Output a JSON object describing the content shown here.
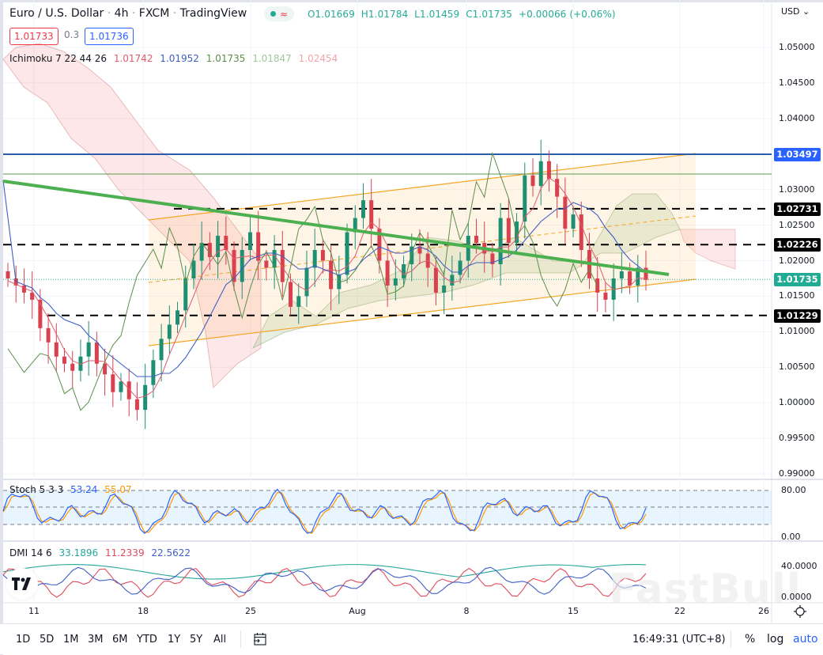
{
  "header": {
    "symbol": "Euro / U.S. Dollar",
    "interval": "4h",
    "exchange": "FXCM",
    "source": "TradingView",
    "separator": "·",
    "status_icons": [
      "market-open-dot-icon",
      "data-delay-wave-icon"
    ],
    "ohlc": {
      "open": "O1.01669",
      "high": "H1.01784",
      "low": "L1.01459",
      "close": "C1.01735",
      "change": "+0.00066 (+0.06%)"
    },
    "bid": "1.01733",
    "spread": "0.3",
    "ask": "1.01736",
    "currency": "USD"
  },
  "indicators": {
    "ichimoku": {
      "label": "Ichimoku 7 22 44 26",
      "values": [
        {
          "v": "1.01742",
          "color": "#e05a6d"
        },
        {
          "v": "1.01952",
          "color": "#3d5fc4"
        },
        {
          "v": "1.01735",
          "color": "#5b8f4a"
        },
        {
          "v": "1.01847",
          "color": "#9fc79a"
        },
        {
          "v": "1.02454",
          "color": "#f2a3a9"
        }
      ]
    },
    "stoch": {
      "label": "Stoch 5 3 3",
      "k": "53.24",
      "d": "55.07",
      "k_color": "#2962ff",
      "d_color": "#ff9800"
    },
    "dmi": {
      "label": "DMI 14 6",
      "adx": "33.1896",
      "plus_di": "11.2339",
      "minus_di": "22.5622",
      "adx_color": "#26a69a",
      "plus_color": "#e04a5a",
      "minus_color": "#3f5fc8"
    }
  },
  "price_axis": {
    "ticks": [
      "1.05000",
      "1.04500",
      "1.04000",
      "1.03000",
      "1.02500",
      "1.02000",
      "1.01500",
      "1.01000",
      "1.00500",
      "1.00000",
      "0.99500",
      "0.99000"
    ],
    "badges": [
      {
        "label": "1.03497",
        "color": "#2962ff",
        "name": "resistance-line-price"
      },
      {
        "label": "1.02731",
        "color": "#000000",
        "name": "horizontal-level-1"
      },
      {
        "label": "1.02226",
        "color": "#000000",
        "name": "horizontal-level-2"
      },
      {
        "label": "1.01735",
        "color": "#22ab94",
        "name": "last-price"
      },
      {
        "label": "1.01229",
        "color": "#000000",
        "name": "horizontal-level-3"
      }
    ]
  },
  "stoch_axis": {
    "ticks": [
      "80.00",
      "0.00"
    ]
  },
  "dmi_axis": {
    "ticks": [
      "40.0000",
      "0.0000"
    ]
  },
  "time_axis": {
    "labels": [
      "11",
      "18",
      "25",
      "Aug",
      "8",
      "15",
      "22",
      "26"
    ]
  },
  "bottom_bar": {
    "ranges": [
      "1D",
      "5D",
      "1M",
      "3M",
      "6M",
      "YTD",
      "1Y",
      "5Y",
      "All"
    ],
    "clock": "16:49:31 (UTC+8)",
    "percent": "%",
    "log": "log",
    "auto": "auto"
  },
  "watermark": "FastBull",
  "chart_data": [
    {
      "type": "candlestick",
      "title": "Euro / U.S. Dollar · 4h · FXCM",
      "xlabel": "",
      "ylabel": "USD",
      "ylim": [
        0.99,
        1.053
      ],
      "x_tick_labels": [
        "11",
        "18",
        "25",
        "Aug",
        "8",
        "15",
        "22",
        "26"
      ],
      "last": {
        "open": 1.01669,
        "high": 1.01784,
        "low": 1.01459,
        "close": 1.01735,
        "change": 0.00066,
        "change_pct": 0.06
      },
      "horizontal_levels": [
        1.03497,
        1.02731,
        1.02226,
        1.01229
      ],
      "approx_close_path": [
        1.0175,
        1.0165,
        1.0155,
        1.0145,
        1.0105,
        1.0085,
        1.0065,
        1.0055,
        1.0045,
        1.0065,
        1.0085,
        1.0055,
        1.004,
        1.0015,
        1.003,
        1.0005,
        0.999,
        1.0025,
        1.006,
        1.009,
        1.011,
        1.013,
        1.0175,
        1.02,
        1.0225,
        1.0205,
        1.0235,
        1.0215,
        1.017,
        1.0215,
        1.024,
        1.02,
        1.019,
        1.0215,
        1.017,
        1.0135,
        1.015,
        1.019,
        1.0215,
        1.02,
        1.016,
        1.018,
        1.024,
        1.026,
        1.0285,
        1.0245,
        1.02,
        1.0165,
        1.0175,
        1.0195,
        1.022,
        1.021,
        1.019,
        1.0155,
        1.0165,
        1.018,
        1.02,
        1.0235,
        1.0225,
        1.021,
        1.0195,
        1.026,
        1.0225,
        1.0255,
        1.032,
        1.0305,
        1.034,
        1.0315,
        1.029,
        1.0245,
        1.0265,
        1.0215,
        1.0175,
        1.0155,
        1.0145,
        1.0175,
        1.0185,
        1.0165,
        1.019,
        1.0173
      ],
      "trendlines": [
        {
          "name": "descending-green",
          "from": [
            0,
            1.031
          ],
          "to": [
            0.86,
            1.0183
          ]
        },
        {
          "name": "channel-upper",
          "from": [
            0.18,
            1.0265
          ],
          "to": [
            0.88,
            1.035
          ]
        },
        {
          "name": "channel-lower",
          "from": [
            0.18,
            1.01
          ],
          "to": [
            0.88,
            1.0177
          ]
        },
        {
          "name": "channel-mid",
          "from": [
            0.18,
            1.0183
          ],
          "to": [
            0.88,
            1.0263
          ]
        }
      ]
    },
    {
      "type": "line",
      "title": "Stoch 5 3 3",
      "ylim": [
        0,
        100
      ],
      "bands": [
        20,
        50,
        80
      ],
      "series": [
        {
          "name": "%K",
          "last": 53.24
        },
        {
          "name": "%D",
          "last": 55.07
        }
      ]
    },
    {
      "type": "line",
      "title": "DMI 14 6",
      "ylim": [
        0,
        55
      ],
      "series": [
        {
          "name": "ADX",
          "last": 33.1896
        },
        {
          "name": "+DI",
          "last": 11.2339
        },
        {
          "name": "-DI",
          "last": 22.5622
        }
      ]
    }
  ]
}
